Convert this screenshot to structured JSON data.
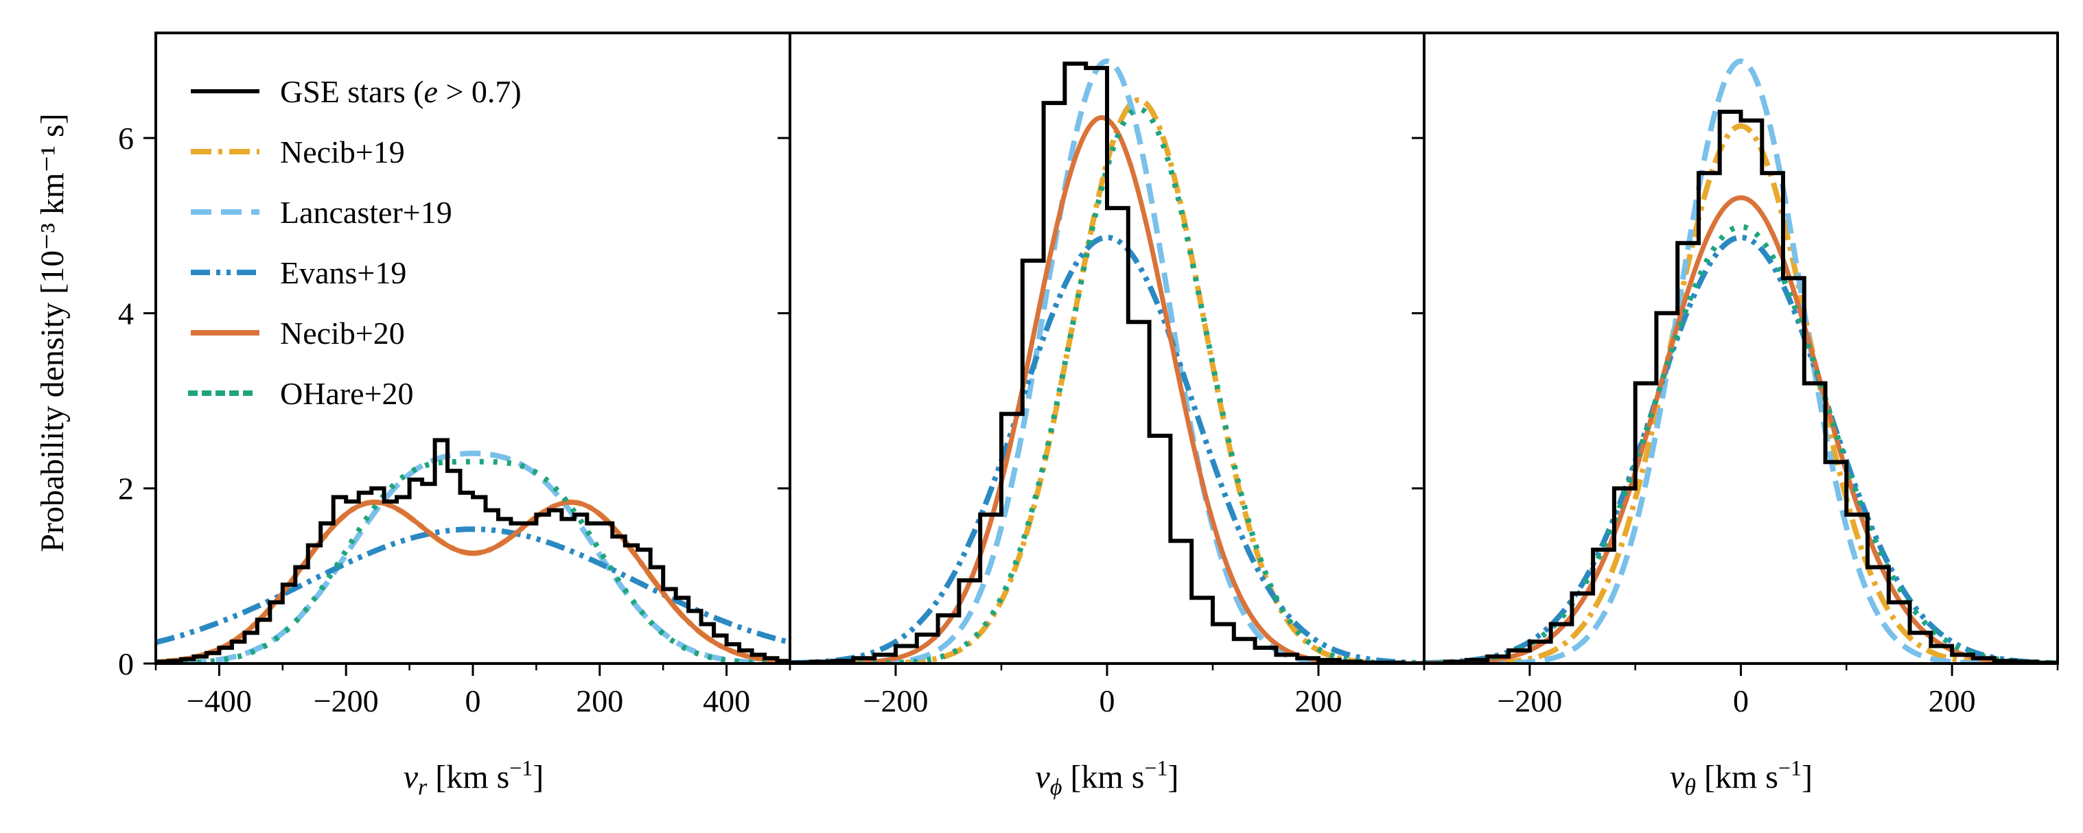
{
  "figure": {
    "ylabel": "Probability density [10⁻³ km⁻¹ s]"
  },
  "legend": [
    {
      "id": "gse",
      "label": "GSE stars (e > 0.7)",
      "color": "#000000",
      "style": "solid"
    },
    {
      "id": "necib19",
      "label": "Necib+19",
      "color": "#E9A92C",
      "style": "dashdot"
    },
    {
      "id": "lancaster19",
      "label": "Lancaster+19",
      "color": "#79C0EA",
      "style": "dashed"
    },
    {
      "id": "evans19",
      "label": "Evans+19",
      "color": "#2B89C2",
      "style": "dashdotdot"
    },
    {
      "id": "necib20",
      "label": "Necib+20",
      "color": "#D9733A",
      "style": "solid"
    },
    {
      "id": "ohare20",
      "label": "OHare+20",
      "color": "#1FA57E",
      "style": "dotted"
    }
  ],
  "chart_data": [
    {
      "type": "line",
      "title": "",
      "xlabel": "v_r [km s⁻¹]",
      "ylabel": "Probability density [10⁻³ km⁻¹ s]",
      "xlim": [
        -500,
        500
      ],
      "ylim": [
        0,
        7.2
      ],
      "xticks": [
        -400,
        -200,
        0,
        200,
        400
      ],
      "xtick_labels": [
        "−400",
        "−200",
        "0",
        "200",
        "400"
      ],
      "yticks": [
        0,
        2,
        4,
        6
      ],
      "ytick_labels": [
        "0",
        "2",
        "4",
        "6"
      ],
      "histogram": {
        "name": "GSE stars (e > 0.7)",
        "edges": [
          -500,
          -480,
          -460,
          -440,
          -420,
          -400,
          -380,
          -360,
          -340,
          -320,
          -300,
          -280,
          -260,
          -240,
          -220,
          -200,
          -180,
          -160,
          -140,
          -120,
          -100,
          -80,
          -60,
          -40,
          -20,
          0,
          20,
          40,
          60,
          80,
          100,
          120,
          140,
          160,
          180,
          200,
          220,
          240,
          260,
          280,
          300,
          320,
          340,
          360,
          380,
          400,
          420,
          440,
          460,
          480,
          500
        ],
        "values": [
          0.02,
          0.03,
          0.05,
          0.08,
          0.12,
          0.18,
          0.25,
          0.35,
          0.5,
          0.7,
          0.9,
          1.1,
          1.35,
          1.6,
          1.9,
          1.85,
          1.95,
          2.0,
          1.85,
          1.9,
          2.1,
          2.05,
          2.55,
          2.2,
          1.95,
          1.9,
          1.75,
          1.65,
          1.6,
          1.6,
          1.7,
          1.75,
          1.65,
          1.7,
          1.6,
          1.6,
          1.45,
          1.35,
          1.3,
          1.1,
          0.85,
          0.75,
          0.6,
          0.45,
          0.32,
          0.22,
          0.15,
          0.1,
          0.06,
          0.03
        ]
      },
      "series": [
        {
          "name": "Necib+19",
          "kind": "gmm2",
          "components": [
            {
              "w": 0.5,
              "mu": -160,
              "sigma": 110
            },
            {
              "w": 0.5,
              "mu": 160,
              "sigma": 110
            }
          ]
        },
        {
          "name": "Lancaster+19",
          "kind": "gmm2",
          "components": [
            {
              "w": 0.5,
              "mu": -100,
              "sigma": 110
            },
            {
              "w": 0.5,
              "mu": 100,
              "sigma": 110
            }
          ]
        },
        {
          "name": "Evans+19",
          "kind": "gaussian",
          "mu": 0,
          "sigma": 260
        },
        {
          "name": "Necib+20",
          "kind": "gmm2",
          "components": [
            {
              "w": 0.5,
              "mu": -160,
              "sigma": 110
            },
            {
              "w": 0.5,
              "mu": 160,
              "sigma": 110
            }
          ]
        },
        {
          "name": "OHare+20",
          "kind": "gmm2",
          "components": [
            {
              "w": 0.5,
              "mu": -105,
              "sigma": 105
            },
            {
              "w": 0.5,
              "mu": 105,
              "sigma": 105
            }
          ]
        }
      ]
    },
    {
      "type": "line",
      "title": "",
      "xlabel": "v_φ [km s⁻¹]",
      "xlim": [
        -300,
        300
      ],
      "ylim": [
        0,
        7.2
      ],
      "xticks": [
        -200,
        0,
        200
      ],
      "xtick_labels": [
        "−200",
        "0",
        "200"
      ],
      "yticks": [
        0,
        2,
        4,
        6
      ],
      "histogram": {
        "name": "GSE stars (e > 0.7)",
        "edges": [
          -300,
          -280,
          -260,
          -240,
          -220,
          -200,
          -180,
          -160,
          -140,
          -120,
          -100,
          -80,
          -60,
          -40,
          -20,
          0,
          20,
          40,
          60,
          80,
          100,
          120,
          140,
          160,
          180,
          200,
          220,
          240,
          260,
          280,
          300
        ],
        "values": [
          0.01,
          0.02,
          0.03,
          0.06,
          0.1,
          0.2,
          0.33,
          0.55,
          0.95,
          1.7,
          2.85,
          4.6,
          6.4,
          6.85,
          6.8,
          5.2,
          3.9,
          2.6,
          1.4,
          0.75,
          0.45,
          0.28,
          0.18,
          0.1,
          0.06,
          0.04,
          0.02,
          0.01,
          0.01,
          0.0
        ]
      },
      "series": [
        {
          "name": "Necib+19",
          "kind": "gaussian",
          "mu": 30,
          "sigma": 62
        },
        {
          "name": "Lancaster+19",
          "kind": "gaussian",
          "mu": 0,
          "sigma": 58
        },
        {
          "name": "Evans+19",
          "kind": "gaussian",
          "mu": 0,
          "sigma": 82
        },
        {
          "name": "Necib+20",
          "kind": "gaussian",
          "mu": -5,
          "sigma": 64
        },
        {
          "name": "OHare+20",
          "kind": "gaussian",
          "mu": 30,
          "sigma": 63
        }
      ]
    },
    {
      "type": "line",
      "title": "",
      "xlabel": "v_θ [km s⁻¹]",
      "xlim": [
        -300,
        300
      ],
      "ylim": [
        0,
        7.2
      ],
      "xticks": [
        -200,
        0,
        200
      ],
      "xtick_labels": [
        "−200",
        "0",
        "200"
      ],
      "yticks": [
        0,
        2,
        4,
        6
      ],
      "histogram": {
        "name": "GSE stars (e > 0.7)",
        "edges": [
          -300,
          -280,
          -260,
          -240,
          -220,
          -200,
          -180,
          -160,
          -140,
          -120,
          -100,
          -80,
          -60,
          -40,
          -20,
          0,
          20,
          40,
          60,
          80,
          100,
          120,
          140,
          160,
          180,
          200,
          220,
          240,
          260,
          280,
          300
        ],
        "values": [
          0.0,
          0.02,
          0.04,
          0.08,
          0.15,
          0.25,
          0.45,
          0.8,
          1.3,
          2.0,
          3.2,
          4.0,
          4.8,
          5.6,
          6.3,
          6.2,
          5.6,
          4.4,
          3.2,
          2.3,
          1.7,
          1.1,
          0.7,
          0.35,
          0.2,
          0.1,
          0.06,
          0.03,
          0.02,
          0.01
        ]
      },
      "series": [
        {
          "name": "Necib+19",
          "kind": "gaussian",
          "mu": 0,
          "sigma": 65
        },
        {
          "name": "Lancaster+19",
          "kind": "gaussian",
          "mu": 0,
          "sigma": 58
        },
        {
          "name": "Evans+19",
          "kind": "gaussian",
          "mu": 0,
          "sigma": 82
        },
        {
          "name": "Necib+20",
          "kind": "gaussian",
          "mu": 0,
          "sigma": 75
        },
        {
          "name": "OHare+20",
          "kind": "gaussian",
          "mu": 0,
          "sigma": 80
        }
      ]
    }
  ]
}
